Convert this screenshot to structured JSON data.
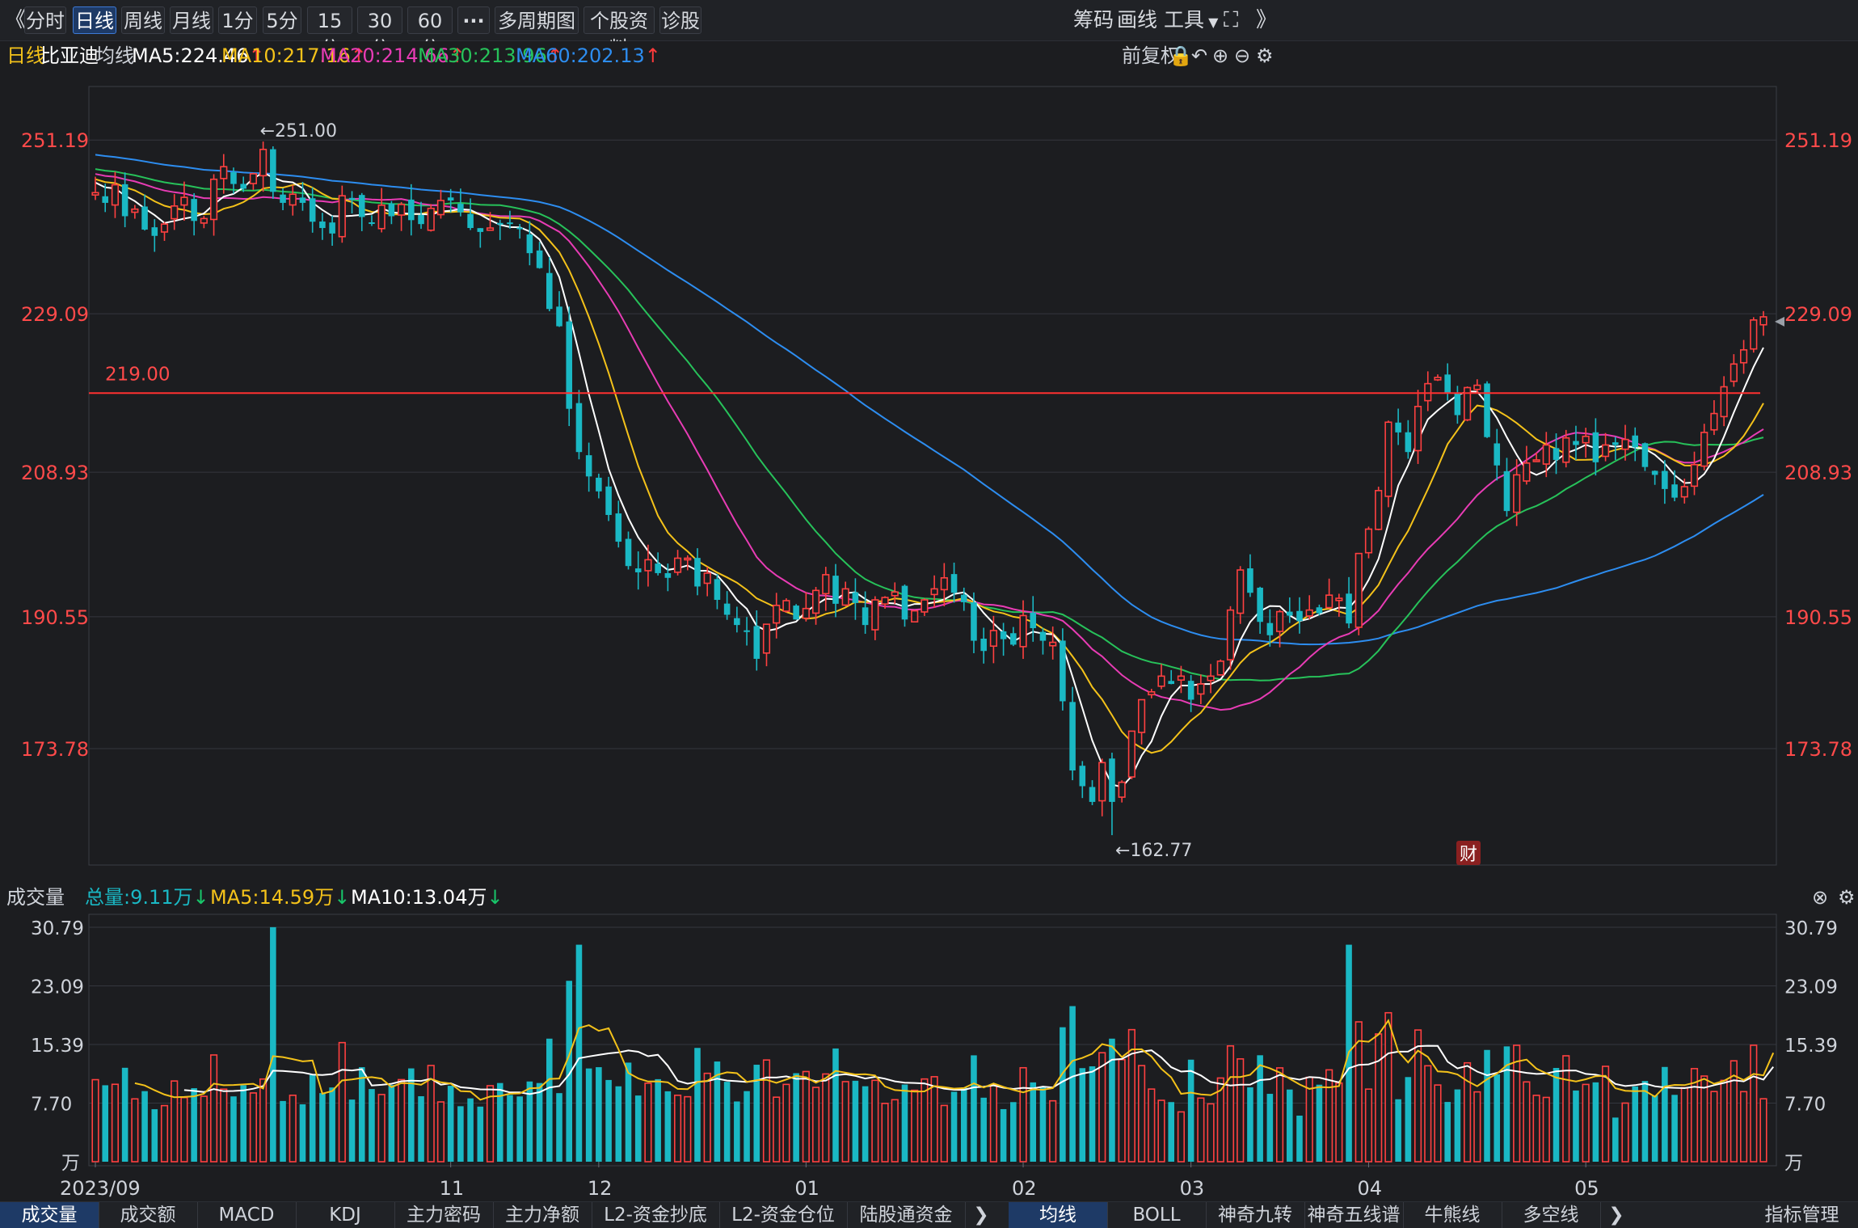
{
  "toolbar": {
    "back_glyph": "《",
    "periods": [
      "分时",
      "日线",
      "周线",
      "月线",
      "1分",
      "5分",
      "15分",
      "30分",
      "60分"
    ],
    "active_period": "日线",
    "more_glyph": "···",
    "multi_period": "多周期图",
    "stock_info": "个股资料",
    "diagnose": "诊股",
    "chips": "筹码",
    "draw": "画线",
    "tools": "工具",
    "right_glyph": "》"
  },
  "info": {
    "period": "日线",
    "stock_name": "比亚迪",
    "ma_label": "均线",
    "ma5": "MA5:224.46",
    "ma10": "MA10:217.16",
    "ma20": "MA20:214.66",
    "ma30": "MA30:213.96",
    "ma60": "MA60:202.13",
    "adjust": "前复权"
  },
  "volume_header": {
    "title": "成交量",
    "total": "总量:9.11万",
    "ma5": "MA5:14.59万",
    "ma10": "MA10:13.04万"
  },
  "colors": {
    "up": "#ff4040",
    "down": "#1ab8c4",
    "ma5": "#ffffff",
    "ma10": "#f4c21a",
    "ma20": "#e83cb5",
    "ma30": "#27c25a",
    "ma60": "#2d8df0",
    "hline": "#ff3030"
  },
  "chart_data": {
    "type": "candlestick",
    "price_axis_ticks": [
      "251.19",
      "229.09",
      "208.93",
      "190.55",
      "173.78"
    ],
    "volume_axis_ticks": [
      "30.79",
      "23.09",
      "15.39",
      "7.70",
      "万"
    ],
    "x_tick_labels": [
      "2023/09",
      "11",
      "12",
      "01",
      "02",
      "03",
      "04",
      "05"
    ],
    "annotations": {
      "high": "←251.00",
      "low": "←162.77",
      "hline": "219.00",
      "fin_badge": "财"
    },
    "price_range": [
      160,
      258
    ],
    "volume_range": [
      0,
      33
    ],
    "hline_value": 219.0,
    "closes": [
      244.5,
      243.2,
      245.5,
      241.5,
      242.4,
      239.8,
      239,
      240.5,
      242.8,
      243.9,
      240.9,
      241.2,
      246.2,
      247.8,
      245.6,
      245,
      246.9,
      250,
      244.6,
      243.2,
      244.3,
      243.2,
      240.8,
      240,
      239.3,
      244.1,
      243.6,
      241.4,
      240.6,
      242.9,
      241.5,
      243,
      241,
      240.5,
      242.5,
      243.5,
      243.5,
      242,
      240,
      239.5,
      240,
      240.6,
      240.5,
      239.9,
      236.8,
      234.9,
      229.7,
      227.5,
      217,
      211.5,
      208.4,
      206.5,
      203.5,
      200.1,
      197,
      196.2,
      197.8,
      196.1,
      195.5,
      198,
      198,
      194.4,
      196.1,
      192.7,
      190.8,
      189.5,
      188.7,
      185.2,
      189.6,
      192,
      192.6,
      190.2,
      191.6,
      193.9,
      195.9,
      192.2,
      194.1,
      192.3,
      189.5,
      192.7,
      193,
      193.7,
      190.2,
      191.3,
      192.7,
      194.1,
      195.5,
      193.6,
      192.4,
      187.5,
      186.2,
      188.8,
      187.7,
      187,
      190.7,
      189.1,
      187.5,
      187.3,
      179.8,
      171,
      169,
      167,
      172,
      167,
      169.5,
      176,
      180,
      181,
      183,
      182,
      183,
      180,
      182,
      183,
      184.9,
      191.4,
      196.5,
      193.6,
      189.9,
      188.2,
      191.2,
      190.7,
      190,
      191.4,
      191,
      193.3,
      192.9,
      189.7,
      198.6,
      201.7,
      206.6,
      215.3,
      214,
      211.5,
      217.3,
      220.2,
      221,
      219,
      216.2,
      219.7,
      220,
      213.4,
      209.8,
      204,
      208.6,
      210.1,
      210.5,
      212.4,
      210.5,
      213.3,
      212.4,
      213.5,
      210.2,
      212.4,
      212.4,
      213.1,
      212.1,
      209.6,
      208.6,
      206.8,
      205.7,
      207.1,
      209.9,
      214,
      216.4,
      219.8,
      222.7,
      224.5,
      228.3,
      228.7
    ]
  }
}
